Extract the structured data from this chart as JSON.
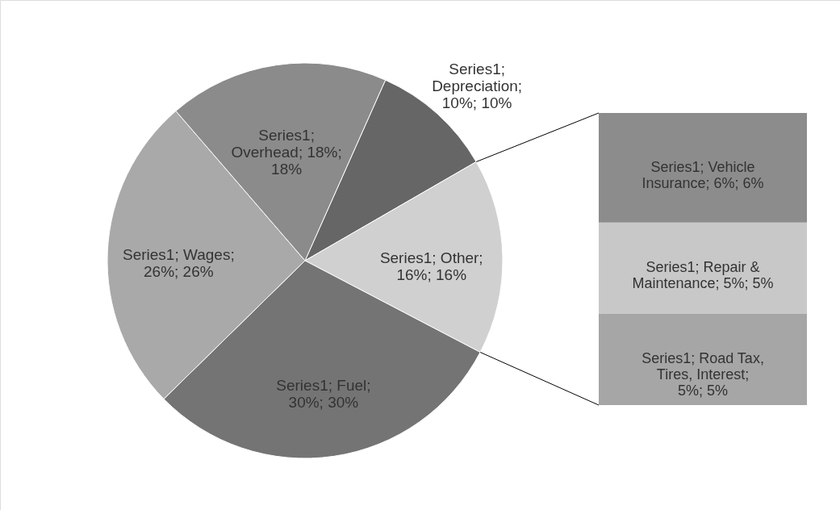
{
  "chart_data": [
    {
      "type": "pie",
      "categories": [
        null,
        null,
        null,
        null,
        null
      ],
      "series": [
        {
          "values": [
            10,
            16,
            30,
            26,
            18
          ],
          "colors": [
            "#666666",
            "#d0d0d0",
            "#747474",
            "#a9a9a9",
            "#8b8b8b"
          ],
          "value_labels": [
            "Series1; Depreciation; 10%; 10%",
            "Series1; Other; 16%; 16%",
            "Series1; Fuel; 30%; 30%",
            "Series1; Wages; 26%; 26%",
            "Series1; Overhead; 18%; 18%"
          ]
        }
      ]
    },
    {
      "type": "bar",
      "stacked": true,
      "categories": [
        null
      ],
      "series": [
        {
          "color": "#a6a6a6",
          "values": [
            5
          ],
          "value_labels": [
            "Series1; Road Tax, Tires, Interest; 5%; 5%"
          ]
        },
        {
          "color": "#c8c8c8",
          "values": [
            5
          ],
          "value_labels": [
            "Series1; Repair & Maintenance; 5%; 5%"
          ]
        },
        {
          "color": "#8c8c8c",
          "values": [
            6
          ],
          "value_labels": [
            "Series1; Vehicle Insurance; 6%; 6%"
          ]
        }
      ]
    }
  ]
}
